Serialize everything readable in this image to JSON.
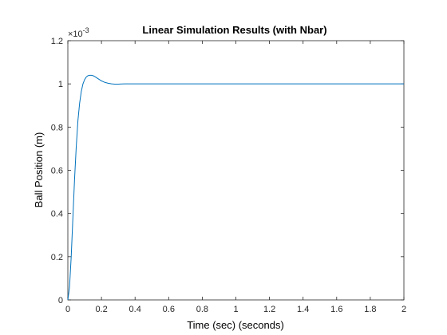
{
  "chart_data": {
    "type": "line",
    "title": "Linear Simulation Results (with Nbar)",
    "xlabel": "Time (sec) (seconds)",
    "ylabel": "Ball Position (m)",
    "y_exponent": "×10",
    "y_exponent_power": "-3",
    "xlim": [
      0,
      2
    ],
    "ylim": [
      0,
      1.2
    ],
    "y_scale_factor": 0.001,
    "x_ticks": [
      "0",
      "0.2",
      "0.4",
      "0.6",
      "0.8",
      "1",
      "1.2",
      "1.4",
      "1.6",
      "1.8",
      "2"
    ],
    "x_tick_values": [
      0,
      0.2,
      0.4,
      0.6,
      0.8,
      1.0,
      1.2,
      1.4,
      1.6,
      1.8,
      2.0
    ],
    "y_ticks": [
      "0",
      "0.2",
      "0.4",
      "0.6",
      "0.8",
      "1",
      "1.2"
    ],
    "y_tick_values": [
      0,
      0.2,
      0.4,
      0.6,
      0.8,
      1.0,
      1.2
    ],
    "grid": false,
    "box": true,
    "series": [
      {
        "color": "#0072BD",
        "x": [
          0,
          0.01,
          0.02,
          0.03,
          0.04,
          0.05,
          0.06,
          0.07,
          0.08,
          0.09,
          0.1,
          0.11,
          0.12,
          0.13,
          0.14,
          0.15,
          0.16,
          0.17,
          0.18,
          0.19,
          0.2,
          0.22,
          0.24,
          0.26,
          0.28,
          0.3,
          0.32,
          0.34,
          0.36,
          0.38,
          0.4,
          0.5,
          0.6,
          0.8,
          1.0,
          1.2,
          1.4,
          1.6,
          1.8,
          2.0
        ],
        "y": [
          0,
          0.06,
          0.2,
          0.38,
          0.56,
          0.71,
          0.83,
          0.91,
          0.965,
          1.0,
          1.02,
          1.032,
          1.038,
          1.04,
          1.04,
          1.038,
          1.034,
          1.029,
          1.024,
          1.019,
          1.014,
          1.007,
          1.003,
          1.0,
          0.999,
          0.999,
          0.9995,
          1.0,
          1.0,
          1.0,
          1.0,
          1.0,
          1.0,
          1.0,
          1.0,
          1.0,
          1.0,
          1.0,
          1.0,
          1.0
        ]
      }
    ]
  }
}
